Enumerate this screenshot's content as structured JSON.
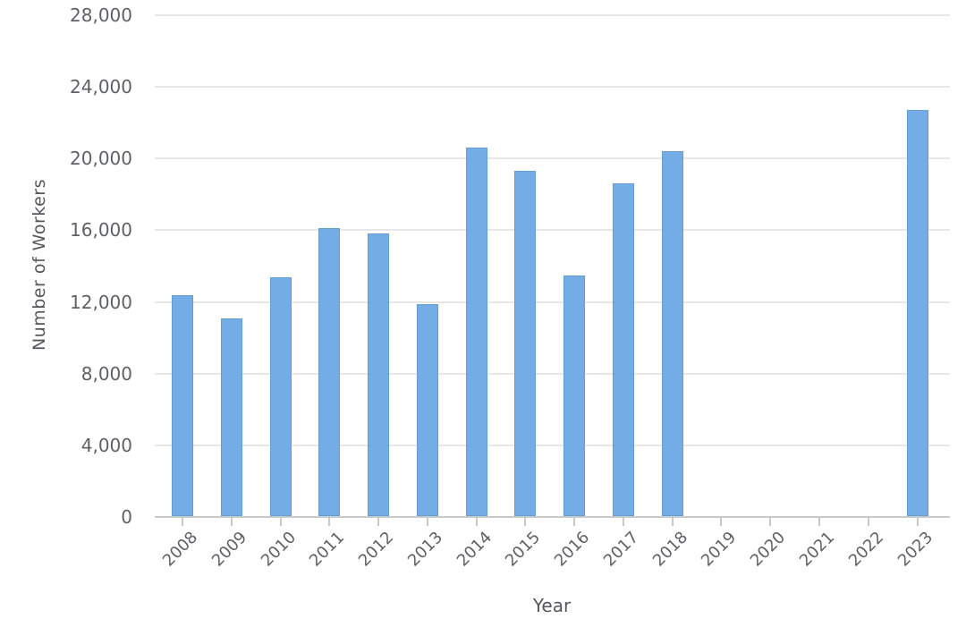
{
  "chart_data": {
    "type": "bar",
    "title": "",
    "xlabel": "Year",
    "ylabel": "Number of Workers",
    "categories": [
      "2008",
      "2009",
      "2010",
      "2011",
      "2012",
      "2013",
      "2014",
      "2015",
      "2016",
      "2017",
      "2018",
      "2019",
      "2020",
      "2021",
      "2022",
      "2023"
    ],
    "values": [
      12400,
      11100,
      13400,
      16100,
      15800,
      11900,
      20600,
      19300,
      13500,
      18600,
      20400,
      0,
      0,
      0,
      0,
      22700
    ],
    "ylim": [
      0,
      28000
    ],
    "ytick_step": 4000,
    "ytick_labels": [
      "0",
      "4,000",
      "8,000",
      "12,000",
      "16,000",
      "20,000",
      "24,000",
      "28,000"
    ],
    "grid": true,
    "legend_position": "none",
    "bar_color": "#74ADE6"
  },
  "colors": {
    "background": "#ffffff",
    "bar": "#74ADE6",
    "gridline": "#e7e7e7",
    "axis_line": "#c9c9c9",
    "tick_mark": "#c9c9c9",
    "tick_label_text": "#5e6165",
    "axis_title_text": "#54575b"
  }
}
